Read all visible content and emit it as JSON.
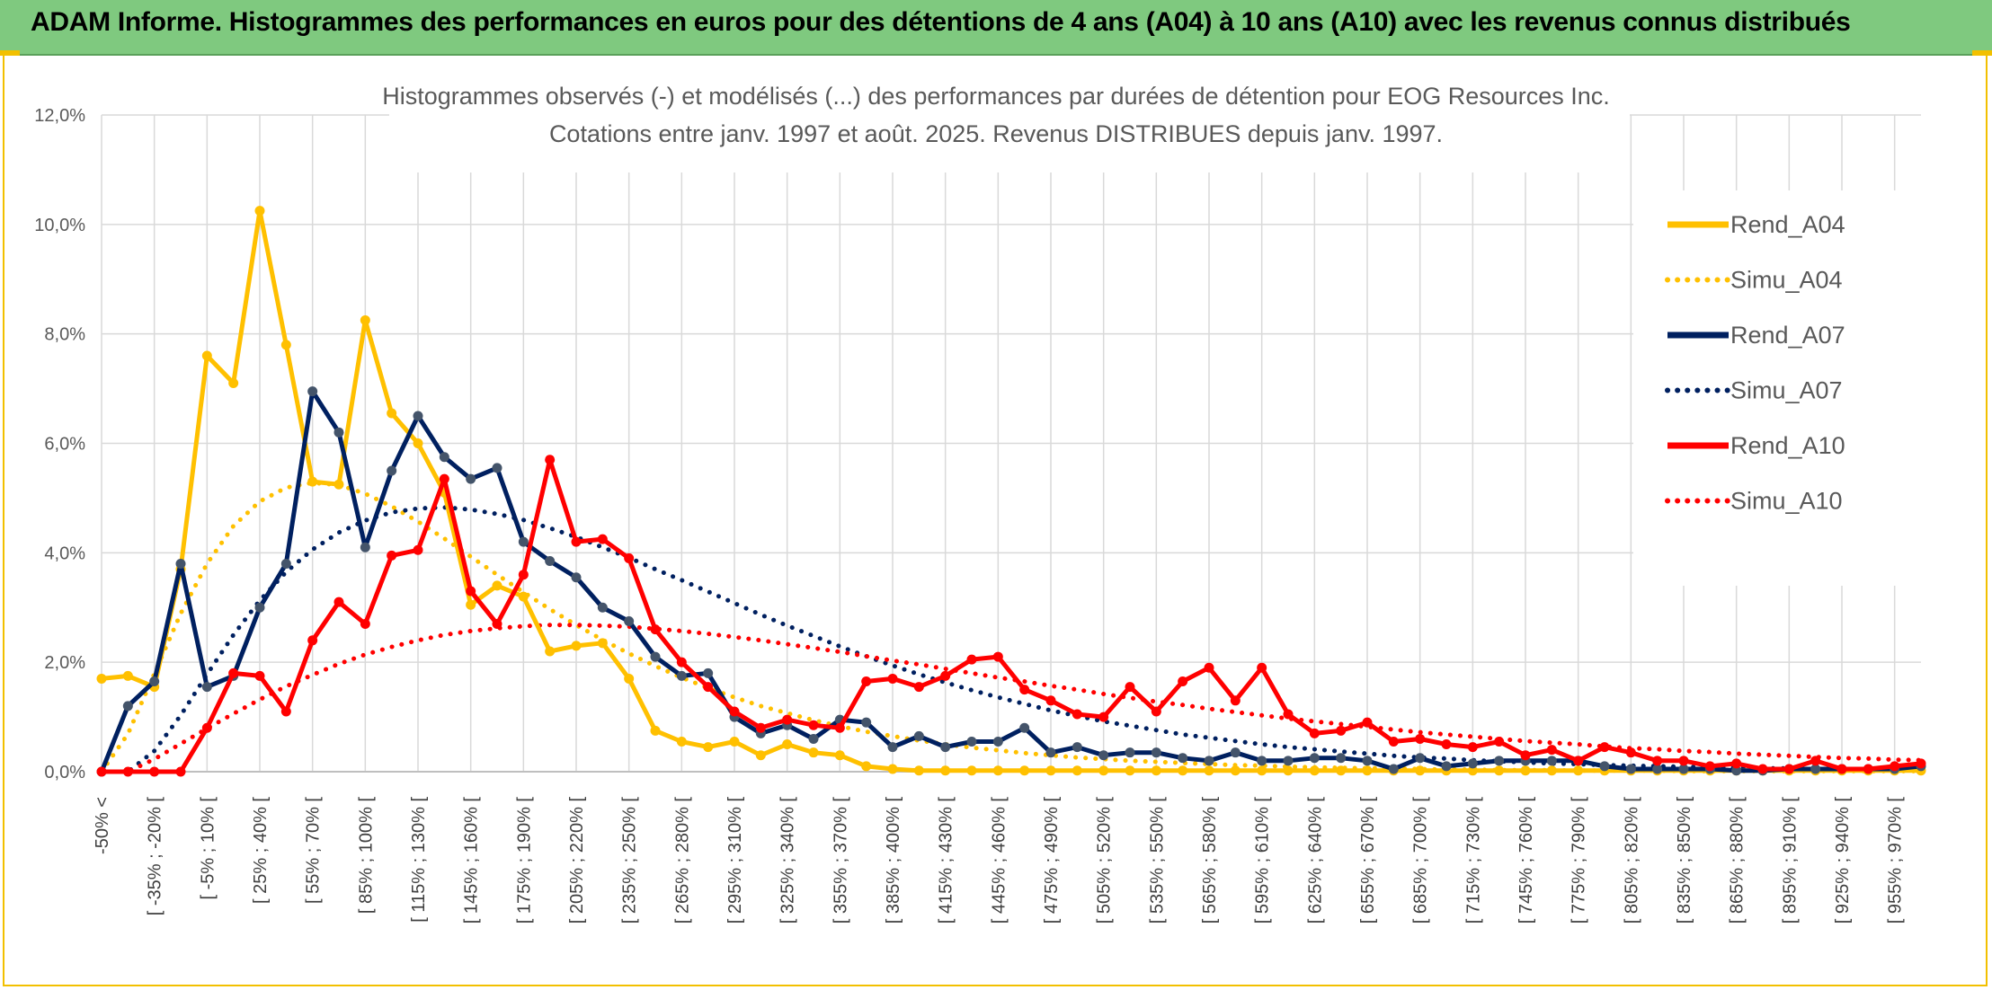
{
  "banner": {
    "title": "ADAM Informe. Histogrammes des performances en euros pour des détentions de 4 ans (A04) à 10 ans (A10) avec les revenus connus distribués"
  },
  "colors": {
    "banner_bg": "#7fc97f",
    "a04": "#FFC000",
    "a07": "#002060",
    "a10": "#FF0000",
    "frame": "#F2C000"
  },
  "chart_data": {
    "type": "line",
    "title": "Histogrammes observés (-) et modélisés (...) des performances par durées de détention pour EOG Resources Inc.",
    "subtitle": "Cotations entre janv. 1997 et août. 2025. Revenus DISTRIBUES depuis janv. 1997.",
    "ylim": [
      0,
      12
    ],
    "yticks": [
      "0,0%",
      "2,0%",
      "4,0%",
      "6,0%",
      "8,0%",
      "10,0%",
      "12,0%"
    ],
    "grid": true,
    "legend_placement": "right",
    "x_tick_labels": [
      "-50% <",
      "[ -35% ; -20% [",
      "[ -5% ; 10% [",
      "[ 25% ; 40% [",
      "[ 55% ; 70% [",
      "[ 85% ; 100% [",
      "[ 115% ; 130% [",
      "[ 145% ; 160% [",
      "[ 175% ; 190% [",
      "[ 205% ; 220% [",
      "[ 235% ; 250% [",
      "[ 265% ; 280% [",
      "[ 295% ; 310% [",
      "[ 325% ; 340% [",
      "[ 355% ; 370% [",
      "[ 385% ; 400% [",
      "[ 415% ; 430% [",
      "[ 445% ; 460% [",
      "[ 475% ; 490% [",
      "[ 505% ; 520% [",
      "[ 535% ; 550% [",
      "[ 565% ; 580% [",
      "[ 595% ; 610% [",
      "[ 625% ; 640% [",
      "[ 655% ; 670% [",
      "[ 685% ; 700% [",
      "[ 715% ; 730% [",
      "[ 745% ; 760% [",
      "[ 775% ; 790% [",
      "[ 805% ; 820% [",
      "[ 835% ; 850% [",
      "[ 865% ; 880% [",
      "[ 895% ; 910% [",
      "[ 925% ; 940% [",
      "[ 955% ; 970% ["
    ],
    "series": [
      {
        "name": "Rend_A04",
        "style": "solid",
        "color": "#FFC000",
        "values": [
          1.7,
          1.75,
          1.55,
          3.7,
          7.6,
          7.1,
          10.25,
          7.8,
          5.3,
          5.25,
          8.25,
          6.55,
          6.0,
          5.1,
          3.05,
          3.4,
          3.2,
          2.2,
          2.3,
          2.35,
          1.7,
          0.75,
          0.55,
          0.45,
          0.55,
          0.3,
          0.5,
          0.35,
          0.3,
          0.1,
          0.05,
          0.02,
          0.02,
          0.02,
          0.02,
          0.02,
          0.02,
          0.02,
          0.02,
          0.02,
          0.02,
          0.02,
          0.02,
          0.02,
          0.02,
          0.02,
          0.02,
          0.02,
          0.02,
          0.02,
          0.02,
          0.02,
          0.02,
          0.02,
          0.02,
          0.02,
          0.02,
          0.02,
          0.02,
          0.02,
          0.02,
          0.02,
          0.02,
          0.02,
          0.02,
          0.02,
          0.02,
          0.02,
          0.02,
          0.02
        ]
      },
      {
        "name": "Simu_A04",
        "style": "dotted",
        "color": "#FFC000",
        "values": [
          0.0,
          0.69,
          1.79,
          2.89,
          3.8,
          4.49,
          4.94,
          5.19,
          5.28,
          5.24,
          5.08,
          4.85,
          4.57,
          4.26,
          3.93,
          3.6,
          3.28,
          2.97,
          2.68,
          2.41,
          2.16,
          1.93,
          1.72,
          1.53,
          1.36,
          1.2,
          1.07,
          0.94,
          0.83,
          0.73,
          0.65,
          0.57,
          0.5,
          0.44,
          0.39,
          0.34,
          0.3,
          0.26,
          0.23,
          0.2,
          0.18,
          0.16,
          0.14,
          0.12,
          0.11,
          0.09,
          0.08,
          0.07,
          0.06,
          0.06,
          0.05,
          0.04,
          0.04,
          0.03,
          0.03,
          0.03,
          0.02,
          0.02,
          0.02,
          0.02,
          0.01,
          0.01,
          0.01,
          0.01,
          0.01,
          0.01,
          0.01,
          0.01,
          0.01,
          0.01
        ]
      },
      {
        "name": "Rend_A07",
        "style": "solid",
        "color": "#002060",
        "values": [
          0.0,
          1.2,
          1.65,
          3.8,
          1.55,
          1.75,
          3.0,
          3.8,
          6.95,
          6.2,
          4.1,
          5.5,
          6.5,
          5.75,
          5.35,
          5.55,
          4.2,
          3.85,
          3.55,
          3.0,
          2.75,
          2.1,
          1.75,
          1.8,
          1.0,
          0.7,
          0.85,
          0.6,
          0.95,
          0.9,
          0.45,
          0.65,
          0.45,
          0.55,
          0.55,
          0.8,
          0.35,
          0.45,
          0.3,
          0.35,
          0.35,
          0.25,
          0.2,
          0.35,
          0.2,
          0.2,
          0.25,
          0.25,
          0.2,
          0.05,
          0.25,
          0.1,
          0.15,
          0.2,
          0.2,
          0.2,
          0.2,
          0.1,
          0.05,
          0.05,
          0.05,
          0.05,
          0.02,
          0.02,
          0.05,
          0.05,
          0.05,
          0.05,
          0.05,
          0.1
        ]
      },
      {
        "name": "Simu_A07",
        "style": "dotted",
        "color": "#002060",
        "values": [
          0.0,
          0.0,
          0.38,
          1.03,
          1.78,
          2.5,
          3.13,
          3.65,
          4.06,
          4.37,
          4.59,
          4.74,
          4.81,
          4.83,
          4.79,
          4.71,
          4.6,
          4.45,
          4.29,
          4.1,
          3.91,
          3.7,
          3.5,
          3.29,
          3.08,
          2.87,
          2.67,
          2.48,
          2.29,
          2.11,
          1.94,
          1.78,
          1.63,
          1.49,
          1.36,
          1.24,
          1.12,
          1.02,
          0.92,
          0.84,
          0.76,
          0.68,
          0.62,
          0.56,
          0.5,
          0.45,
          0.41,
          0.37,
          0.33,
          0.29,
          0.26,
          0.24,
          0.21,
          0.19,
          0.17,
          0.15,
          0.14,
          0.12,
          0.11,
          0.1,
          0.09,
          0.08,
          0.07,
          0.06,
          0.06,
          0.05,
          0.04,
          0.04,
          0.04,
          0.03
        ]
      },
      {
        "name": "Rend_A10",
        "style": "solid",
        "color": "#FF0000",
        "values": [
          0.0,
          0.0,
          0.0,
          0.0,
          0.8,
          1.8,
          1.75,
          1.1,
          2.4,
          3.1,
          2.7,
          3.95,
          4.05,
          5.35,
          3.3,
          2.7,
          3.6,
          5.7,
          4.2,
          4.25,
          3.9,
          2.6,
          2.0,
          1.55,
          1.1,
          0.8,
          0.95,
          0.85,
          0.8,
          1.65,
          1.7,
          1.55,
          1.75,
          2.05,
          2.1,
          1.5,
          1.3,
          1.05,
          1.0,
          1.55,
          1.1,
          1.65,
          1.9,
          1.3,
          1.9,
          1.05,
          0.7,
          0.75,
          0.9,
          0.55,
          0.6,
          0.5,
          0.45,
          0.55,
          0.3,
          0.4,
          0.2,
          0.45,
          0.35,
          0.2,
          0.2,
          0.1,
          0.15,
          0.05,
          0.05,
          0.2,
          0.05,
          0.05,
          0.1,
          0.15
        ]
      },
      {
        "name": "Simu_A10",
        "style": "dotted",
        "color": "#FF0000",
        "values": [
          0.0,
          0.0,
          0.23,
          0.51,
          0.79,
          1.06,
          1.32,
          1.56,
          1.77,
          1.97,
          2.14,
          2.28,
          2.4,
          2.5,
          2.57,
          2.62,
          2.66,
          2.68,
          2.68,
          2.67,
          2.65,
          2.61,
          2.57,
          2.52,
          2.46,
          2.4,
          2.33,
          2.26,
          2.19,
          2.11,
          2.03,
          1.96,
          1.88,
          1.8,
          1.72,
          1.65,
          1.57,
          1.5,
          1.42,
          1.35,
          1.28,
          1.22,
          1.15,
          1.09,
          1.03,
          0.97,
          0.92,
          0.87,
          0.82,
          0.77,
          0.72,
          0.68,
          0.64,
          0.6,
          0.56,
          0.53,
          0.5,
          0.46,
          0.43,
          0.41,
          0.38,
          0.36,
          0.33,
          0.31,
          0.29,
          0.27,
          0.25,
          0.24,
          0.22,
          0.21
        ]
      }
    ]
  }
}
